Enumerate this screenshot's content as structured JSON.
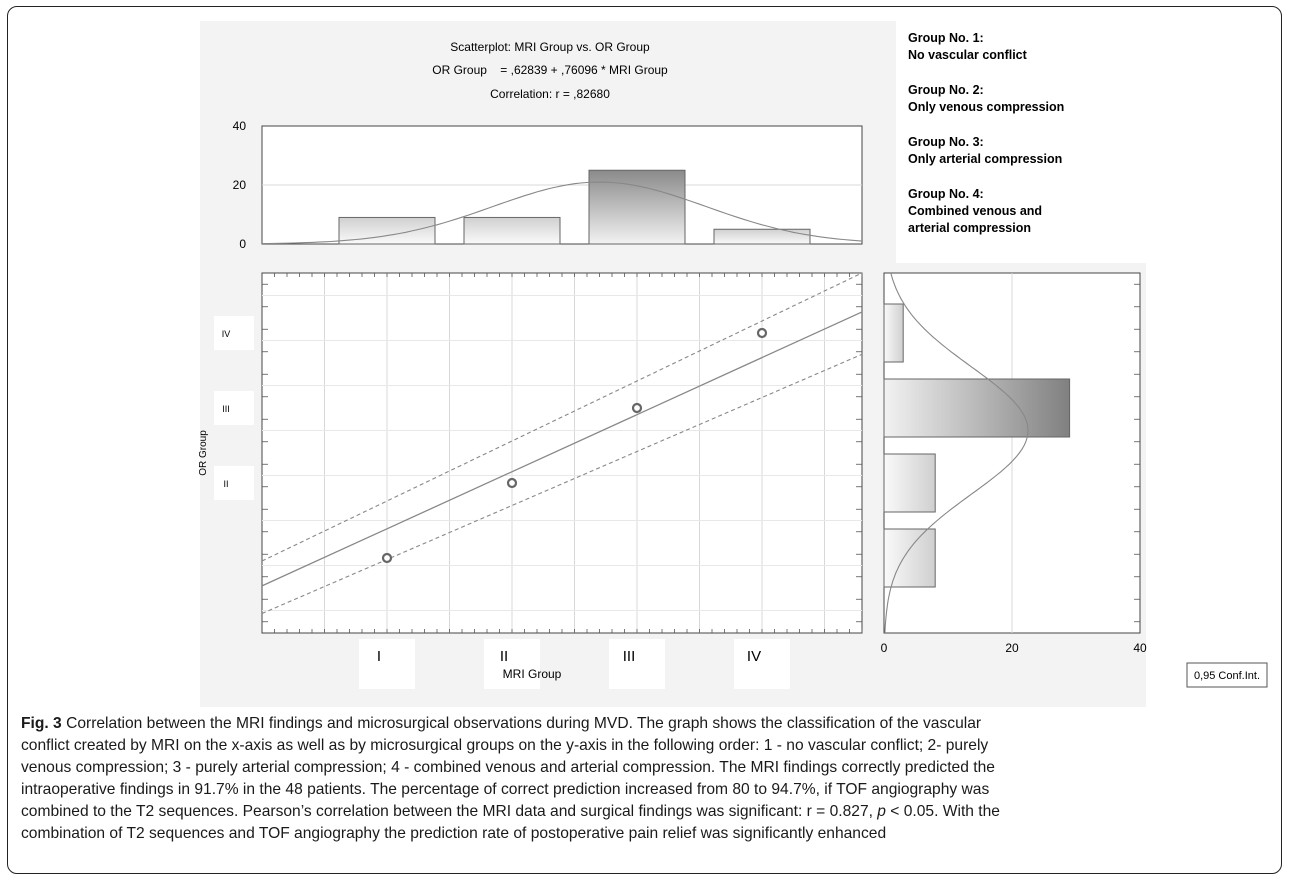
{
  "chart_data": {
    "type": "scatter",
    "title": "Scatterplot: MRI Group vs. OR Group",
    "equation": "OR Group    = ,62839 + ,76096 * MRI Group",
    "correlation": "Correlation: r = ,82680",
    "xlabel": "MRI Group",
    "ylabel": "OR Group",
    "x_ticks": [
      "I",
      "II",
      "III",
      "IV"
    ],
    "y_ticks": [
      "II",
      "III",
      "IV"
    ],
    "xlim": [
      0,
      4.8
    ],
    "ylim": [
      0,
      4.8
    ],
    "points": [
      {
        "x": 1,
        "y": 1
      },
      {
        "x": 2,
        "y": 2
      },
      {
        "x": 3,
        "y": 3
      },
      {
        "x": 4,
        "y": 4
      }
    ],
    "regression": {
      "intercept": 0.62839,
      "slope": 0.76096
    },
    "conf_band": {
      "upper_intercept": 0.96,
      "upper_slope": 0.8,
      "lower_intercept": 0.26,
      "lower_slope": 0.72
    },
    "conf_label": "0,95 Conf.Int.",
    "top_histogram": {
      "categories": [
        "I",
        "II",
        "III",
        "IV"
      ],
      "values": [
        9,
        9,
        25,
        5
      ],
      "ticks": [
        "0",
        "20",
        "40"
      ],
      "ylim": [
        0,
        40
      ]
    },
    "right_histogram": {
      "categories": [
        "I",
        "II",
        "III",
        "IV"
      ],
      "values": [
        8,
        8,
        29,
        3
      ],
      "ticks": [
        "0",
        "20",
        "40"
      ],
      "xlim": [
        0,
        40
      ]
    }
  },
  "legend": [
    {
      "heading": "Group No. 1:",
      "text": "No vascular conflict"
    },
    {
      "heading": "Group No. 2:",
      "text": "Only venous compression"
    },
    {
      "heading": "Group No. 3:",
      "text": "Only arterial compression"
    },
    {
      "heading": "Group No. 4:",
      "text": "Combined venous and",
      "text2": "arterial compression"
    }
  ],
  "caption": {
    "label": "Fig. 3",
    "lines": [
      " Correlation between the MRI findings and microsurgical observations during MVD. The graph shows the classification of the vascular",
      "conflict created by MRI on the x-axis as well as by microsurgical groups on the y-axis in the following order: 1 - no vascular conflict; 2- purely",
      "venous compression; 3 - purely arterial compression; 4 - combined venous and arterial compression. The MRI findings correctly predicted the",
      "intraoperative findings in 91.7% in the 48 patients. The percentage of correct prediction increased from 80 to 94.7%, if TOF angiography was",
      "combined to the T2 sequences. Pearson’s correlation between the MRI data and surgical findings was significant: r = 0.827, ",
      "With the",
      "combination of T2 sequences and TOF angiography the prediction rate of postoperative pain relief was significantly enhanced"
    ],
    "stat_p": "p",
    "stat_rest": " < 0.05."
  }
}
